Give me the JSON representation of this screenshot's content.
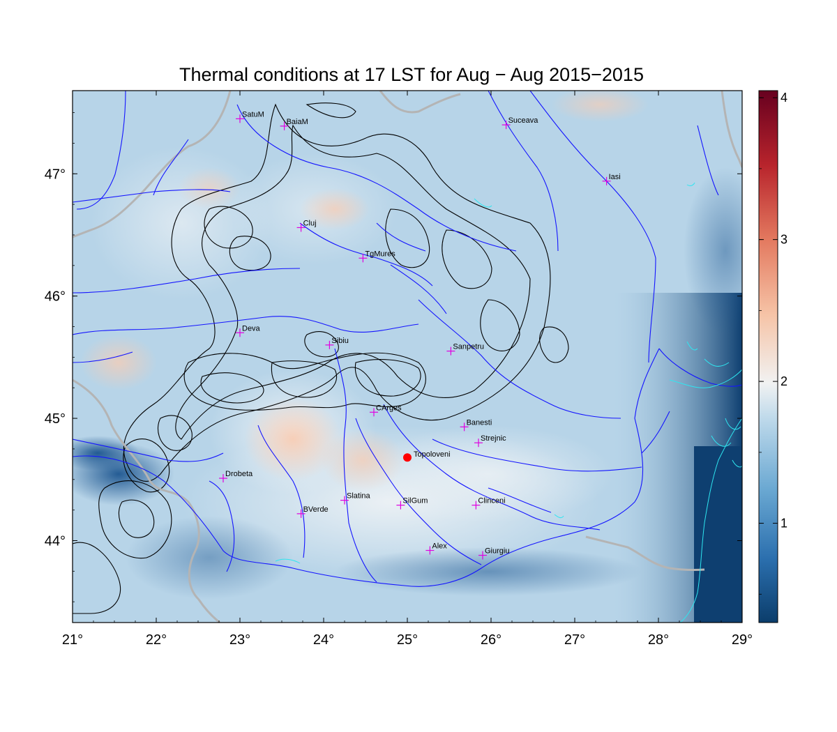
{
  "title": "Thermal conditions at 17 LST for Aug − Aug  2015−2015",
  "x_axis": {
    "ticks": [
      "21°",
      "22°",
      "23°",
      "24°",
      "25°",
      "26°",
      "27°",
      "28°",
      "29°"
    ],
    "values": [
      21,
      22,
      23,
      24,
      25,
      26,
      27,
      28,
      29
    ],
    "range": [
      21,
      29
    ]
  },
  "y_axis": {
    "ticks": [
      "44°",
      "45°",
      "46°",
      "47°"
    ],
    "values": [
      44,
      45,
      46,
      47
    ],
    "range": [
      43.33,
      47.68
    ]
  },
  "colorbar": {
    "ticks": [
      "1",
      "2",
      "3",
      "4"
    ],
    "values": [
      1,
      2,
      3,
      4
    ],
    "range": [
      0.3,
      4.05
    ],
    "colors": [
      "#0b3d6b",
      "#2b6fae",
      "#6aa8d2",
      "#bcd8ea",
      "#f1f2f2",
      "#f6c3a6",
      "#e3795f",
      "#b8242c",
      "#67001f"
    ]
  },
  "cities": [
    {
      "name": "SatuM",
      "lon": 23.0,
      "lat": 47.45
    },
    {
      "name": "BaiaM",
      "lon": 23.53,
      "lat": 47.39
    },
    {
      "name": "Suceava",
      "lon": 26.18,
      "lat": 47.4
    },
    {
      "name": "Iasi",
      "lon": 27.38,
      "lat": 46.94
    },
    {
      "name": "Cluj",
      "lon": 23.73,
      "lat": 46.56
    },
    {
      "name": "TgMures",
      "lon": 24.47,
      "lat": 46.31
    },
    {
      "name": "Deva",
      "lon": 23.0,
      "lat": 45.7
    },
    {
      "name": "Sibiu",
      "lon": 24.07,
      "lat": 45.6
    },
    {
      "name": "Sanpetru",
      "lon": 25.52,
      "lat": 45.55
    },
    {
      "name": "CArges",
      "lon": 24.6,
      "lat": 45.05
    },
    {
      "name": "Banesti",
      "lon": 25.68,
      "lat": 44.93
    },
    {
      "name": "Strejnic",
      "lon": 25.85,
      "lat": 44.8
    },
    {
      "name": "Drobeta",
      "lon": 22.8,
      "lat": 44.51
    },
    {
      "name": "Slatina",
      "lon": 24.25,
      "lat": 44.33
    },
    {
      "name": "SilGum",
      "lon": 24.92,
      "lat": 44.29
    },
    {
      "name": "Clinceni",
      "lon": 25.82,
      "lat": 44.29
    },
    {
      "name": "BVerde",
      "lon": 23.73,
      "lat": 44.22
    },
    {
      "name": "Alex",
      "lon": 25.27,
      "lat": 43.92
    },
    {
      "name": "Giurgiu",
      "lon": 25.9,
      "lat": 43.88
    }
  ],
  "highlight": {
    "name": "Topoloveni",
    "lon": 25.0,
    "lat": 44.68,
    "color": "#ff0000"
  },
  "colors": {
    "river": "#1414ff",
    "border": "#b4b4b4",
    "contour": "#000000",
    "coast": "#2ee6f0",
    "marker": "#e000e0"
  }
}
